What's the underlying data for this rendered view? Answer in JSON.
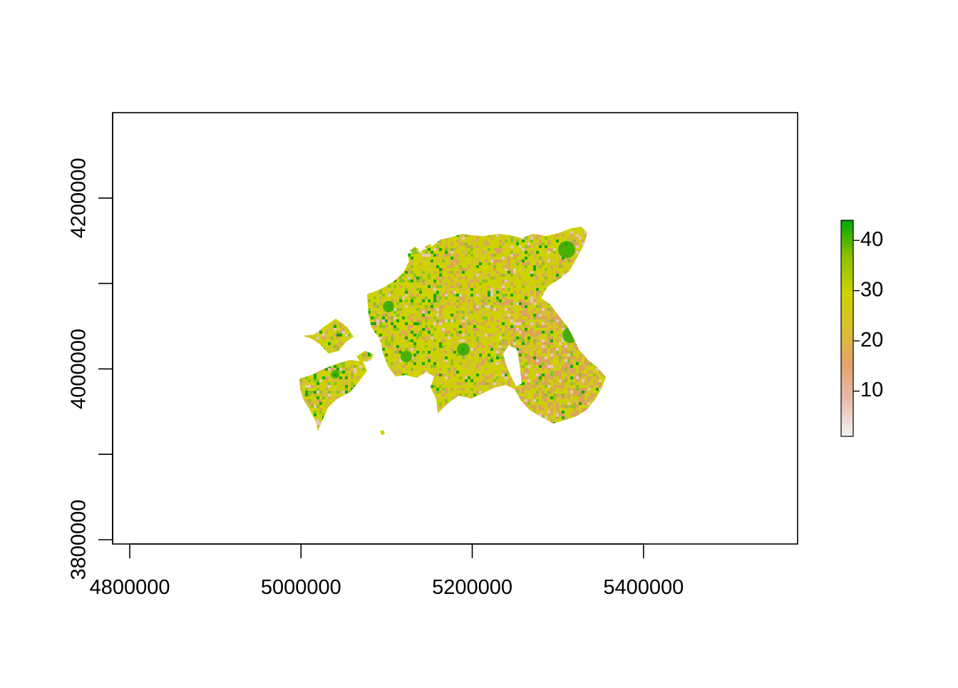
{
  "chart_data": {
    "type": "heatmap",
    "title": "",
    "xlabel": "",
    "ylabel": "",
    "xlim": [
      4780000,
      5580000
    ],
    "ylim": [
      3795000,
      4300000
    ],
    "x_ticks": [
      {
        "value": 4800000,
        "label": "4800000"
      },
      {
        "value": 5000000,
        "label": "5000000"
      },
      {
        "value": 5200000,
        "label": "5200000"
      },
      {
        "value": 5400000,
        "label": "5400000"
      }
    ],
    "y_ticks": [
      {
        "value": 3800000,
        "label": "3800000"
      },
      {
        "value": 3900000,
        "label": ""
      },
      {
        "value": 4000000,
        "label": "4000000"
      },
      {
        "value": 4100000,
        "label": ""
      },
      {
        "value": 4200000,
        "label": "4200000"
      }
    ],
    "legend": {
      "placement": "right",
      "range": [
        1,
        44
      ],
      "ticks": [
        {
          "value": 10,
          "label": "10"
        },
        {
          "value": 20,
          "label": "20"
        },
        {
          "value": 30,
          "label": "30"
        },
        {
          "value": 40,
          "label": "40"
        }
      ],
      "colors": [
        "#f2f2f2",
        "#e7bcae",
        "#e2a36a",
        "#d9c030",
        "#cbd200",
        "#8cc100",
        "#00a600"
      ]
    },
    "raster_colors": {
      "dominant": "#cdd200",
      "mid": "#d4bf36",
      "low": "#dca35a",
      "very_low": "#e8c7b8",
      "high": "#8cc31e",
      "highest": "#19a800"
    },
    "grid": false
  }
}
